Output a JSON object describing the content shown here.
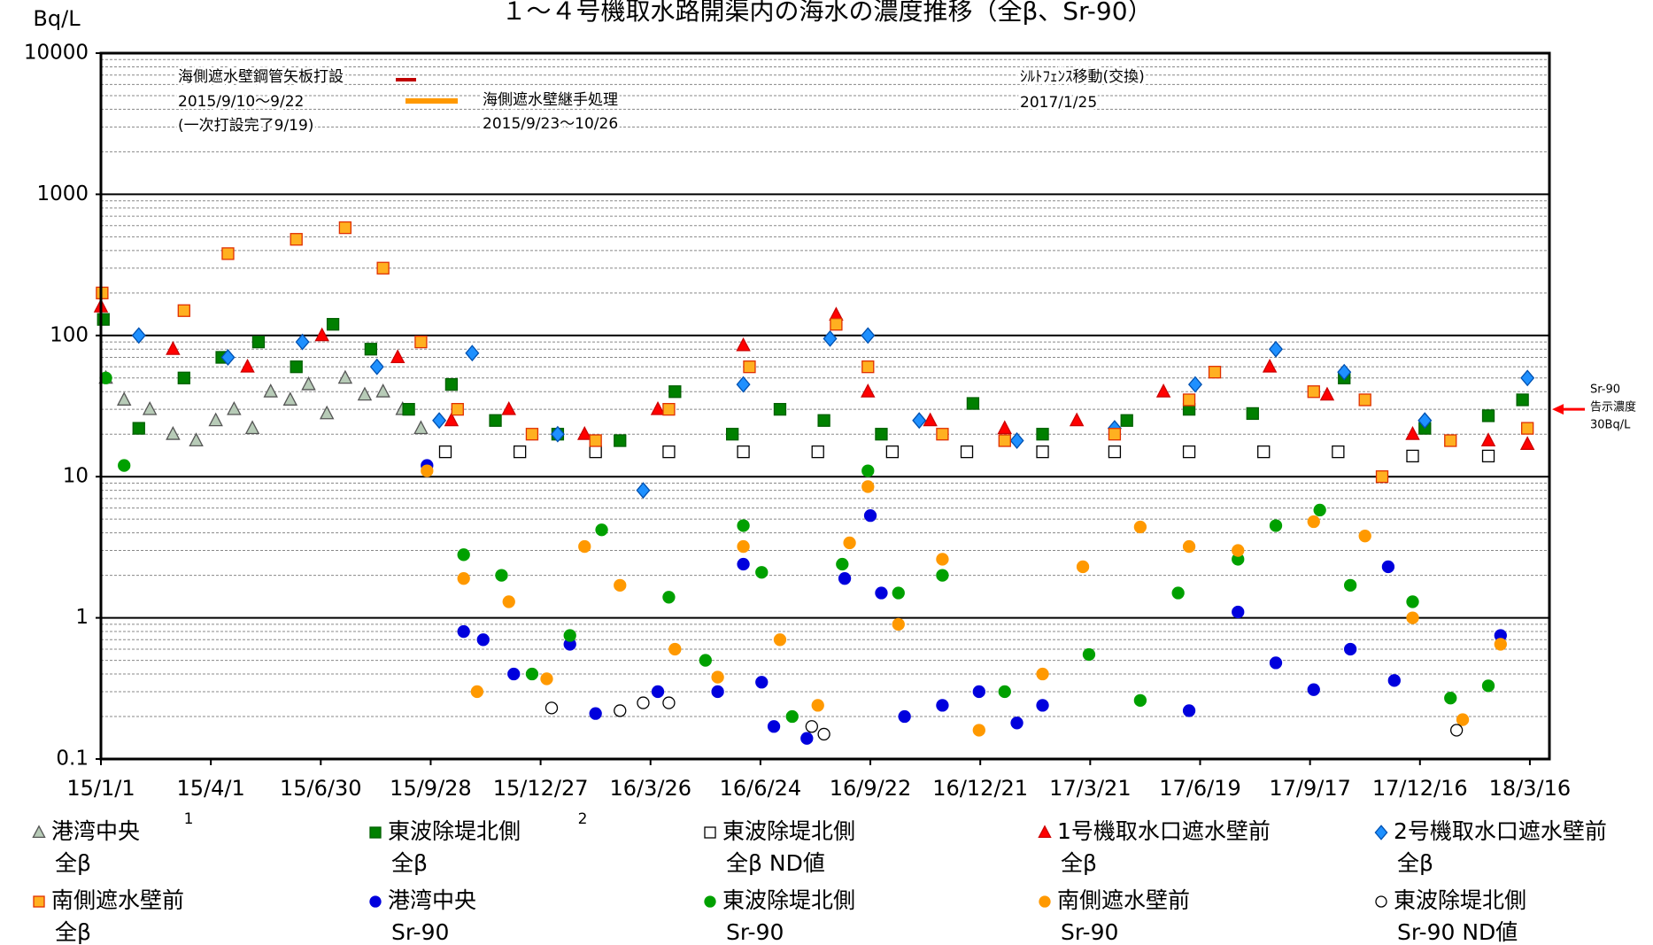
{
  "chart_data": {
    "type": "scatter",
    "title": "１～４号機取水路開渠内の海水の濃度推移（全β、Sr-90）",
    "y_label": "Bq/L",
    "log_y": true,
    "grid": true,
    "minor_grid": true,
    "xlim": [
      "15/1/1",
      "18/4/1"
    ],
    "xticks": [
      "15/1/1",
      "15/4/1",
      "15/6/30",
      "15/9/28",
      "15/12/27",
      "16/3/26",
      "16/6/24",
      "16/9/22",
      "16/12/21",
      "17/3/21",
      "17/6/19",
      "17/9/17",
      "17/12/16",
      "18/3/16"
    ],
    "ylim": [
      0.1,
      10000
    ],
    "yticks": [
      0.1,
      1,
      10,
      100,
      1000,
      10000
    ],
    "annotations": [
      {
        "text": "海側遮水壁鋼管矢板打設",
        "color": "#c00000"
      },
      {
        "text": "2015/9/10～9/22"
      },
      {
        "text": "(一次打設完了9/19)"
      },
      {
        "text": "海側遮水壁継手処理",
        "color": "#ff9900"
      },
      {
        "text": "2015/9/23～10/26"
      },
      {
        "text": "ｼﾙﾄﾌｪﾝｽ移動(交換)"
      },
      {
        "text": "2017/1/25"
      }
    ],
    "reference": {
      "value": 30,
      "label_lines": [
        "Sr-90",
        "告示濃度",
        "30Bq/L"
      ],
      "color": "#ff0000"
    },
    "footnote_marks": [
      "1",
      "2"
    ],
    "series": [
      {
        "name": "港湾中央\n全β",
        "marker": "triangle",
        "color": "#b7cbb7",
        "edge": "#555555",
        "x": [
          "15/1/5",
          "15/1/20",
          "15/2/10",
          "15/3/1",
          "15/3/20",
          "15/4/5",
          "15/4/20",
          "15/5/5",
          "15/5/20",
          "15/6/5",
          "15/6/20",
          "15/7/5",
          "15/7/20",
          "15/8/5",
          "15/8/20",
          "15/9/5",
          "15/9/20"
        ],
        "values": [
          50,
          35,
          30,
          20,
          18,
          25,
          30,
          22,
          40,
          35,
          45,
          28,
          50,
          38,
          40,
          30,
          22
        ]
      },
      {
        "name": "東波除堤北側\n全β",
        "marker": "square",
        "color": "#008000",
        "edge": "#006000",
        "x": [
          "15/1/3",
          "15/2/1",
          "15/3/10",
          "15/4/10",
          "15/5/10",
          "15/6/10",
          "15/7/10",
          "15/8/10",
          "15/9/10",
          "15/10/15",
          "15/11/20",
          "16/1/10",
          "16/3/1",
          "16/4/15",
          "16/6/1",
          "16/7/10",
          "16/8/15",
          "16/10/1",
          "16/12/15",
          "17/2/10",
          "17/4/20",
          "17/6/10",
          "17/8/1",
          "17/10/15",
          "17/12/20",
          "18/2/10",
          "18/3/10"
        ],
        "values": [
          130,
          22,
          50,
          70,
          90,
          60,
          120,
          80,
          30,
          45,
          25,
          20,
          18,
          40,
          20,
          30,
          25,
          20,
          33,
          20,
          25,
          30,
          28,
          50,
          22,
          27,
          35
        ]
      },
      {
        "name": "東波除堤北側\n全β ND値",
        "marker": "square",
        "color": "#ffffff",
        "edge": "#000000",
        "x": [
          "15/10/10",
          "15/12/10",
          "16/2/10",
          "16/4/10",
          "16/6/10",
          "16/8/10",
          "16/10/10",
          "16/12/10",
          "17/2/10",
          "17/4/10",
          "17/6/10",
          "17/8/10",
          "17/10/10",
          "17/12/10",
          "18/2/10"
        ],
        "values": [
          15,
          15,
          15,
          15,
          15,
          15,
          15,
          15,
          15,
          15,
          15,
          15,
          15,
          14,
          14
        ]
      },
      {
        "name": "1号機取水口遮水壁前\n全β",
        "marker": "triangle",
        "color": "#ff0000",
        "edge": "#cc0000",
        "x": [
          "15/1/1",
          "15/3/1",
          "15/5/1",
          "15/7/1",
          "15/9/1",
          "15/10/15",
          "15/12/1",
          "16/2/1",
          "16/4/1",
          "16/6/10",
          "16/8/25",
          "16/9/20",
          "16/11/10",
          "17/1/10",
          "17/3/10",
          "17/5/20",
          "17/8/15",
          "17/10/1",
          "17/12/10",
          "18/2/10",
          "18/3/14"
        ],
        "values": [
          160,
          80,
          60,
          100,
          70,
          25,
          30,
          20,
          30,
          85,
          140,
          40,
          25,
          22,
          25,
          40,
          60,
          38,
          20,
          18,
          17
        ]
      },
      {
        "name": "2号機取水口遮水壁前\n全β",
        "marker": "diamond",
        "color": "#1e90ff",
        "edge": "#0050b0",
        "x": [
          "15/2/1",
          "15/4/15",
          "15/6/15",
          "15/8/15",
          "15/10/5",
          "15/11/1",
          "16/1/10",
          "16/3/20",
          "16/6/10",
          "16/8/20",
          "16/9/20",
          "16/11/1",
          "17/1/20",
          "17/4/10",
          "17/6/15",
          "17/8/20",
          "17/10/15",
          "17/12/20",
          "18/3/14"
        ],
        "values": [
          100,
          70,
          90,
          60,
          25,
          75,
          20,
          8,
          45,
          95,
          100,
          25,
          18,
          22,
          45,
          80,
          55,
          25,
          50
        ]
      },
      {
        "name": "南側遮水壁前\n全β",
        "marker": "square",
        "color": "#ffb020",
        "edge": "#e03000",
        "x": [
          "15/1/2",
          "15/3/10",
          "15/4/15",
          "15/6/10",
          "15/7/20",
          "15/8/20",
          "15/9/20",
          "15/10/20",
          "15/12/20",
          "16/2/10",
          "16/4/10",
          "16/6/15",
          "16/8/25",
          "16/9/20",
          "16/11/20",
          "17/1/10",
          "17/4/10",
          "17/6/10",
          "17/7/1",
          "17/9/20",
          "17/11/1",
          "17/11/15",
          "18/1/10",
          "18/3/14"
        ],
        "values": [
          200,
          150,
          380,
          480,
          580,
          300,
          90,
          30,
          20,
          18,
          30,
          60,
          120,
          60,
          20,
          18,
          20,
          35,
          55,
          40,
          35,
          10,
          18,
          22
        ]
      },
      {
        "name": "港湾中央\nSr-90",
        "marker": "circle",
        "color": "#0000dd",
        "edge": "#0000dd",
        "x": [
          "15/9/25",
          "15/10/25",
          "15/11/10",
          "15/12/5",
          "16/1/20",
          "16/2/10",
          "16/4/1",
          "16/5/20",
          "16/6/10",
          "16/6/25",
          "16/7/5",
          "16/8/1",
          "16/9/1",
          "16/9/22",
          "16/10/1",
          "16/10/20",
          "16/11/20",
          "16/12/20",
          "17/1/20",
          "17/2/10",
          "17/6/10",
          "17/7/20",
          "17/8/20",
          "17/9/20",
          "17/10/20",
          "17/11/20",
          "17/11/25",
          "18/2/20"
        ],
        "values": [
          12,
          0.8,
          0.7,
          0.4,
          0.65,
          0.21,
          0.3,
          0.3,
          2.4,
          0.35,
          0.17,
          0.14,
          1.9,
          5.3,
          1.5,
          0.2,
          0.24,
          0.3,
          0.18,
          0.24,
          0.22,
          1.1,
          0.48,
          0.31,
          0.6,
          2.3,
          0.36,
          0.75
        ]
      },
      {
        "name": "東波除堤北側\nSr-90",
        "marker": "circle",
        "color": "#00a000",
        "edge": "#00a000",
        "x": [
          "15/1/5",
          "15/1/20",
          "15/10/25",
          "15/11/25",
          "15/12/20",
          "16/1/20",
          "16/2/15",
          "16/4/10",
          "16/5/10",
          "16/6/10",
          "16/6/25",
          "16/7/20",
          "16/8/30",
          "16/9/20",
          "16/10/15",
          "16/11/20",
          "17/1/10",
          "17/3/20",
          "17/5/1",
          "17/6/1",
          "17/7/20",
          "17/8/20",
          "17/9/25",
          "17/10/20",
          "17/12/10",
          "18/1/10",
          "18/2/10"
        ],
        "values": [
          50,
          12,
          2.8,
          2.0,
          0.4,
          0.75,
          4.2,
          1.4,
          0.5,
          4.5,
          2.1,
          0.2,
          2.4,
          11,
          1.5,
          2.0,
          0.3,
          0.55,
          0.26,
          1.5,
          2.6,
          4.5,
          5.8,
          1.7,
          1.3,
          0.27,
          0.33
        ]
      },
      {
        "name": "南側遮水壁前\nSr-90",
        "marker": "circle",
        "color": "#ff9900",
        "edge": "#ff9900",
        "x": [
          "15/9/25",
          "15/10/25",
          "15/11/5",
          "15/12/1",
          "16/1/1",
          "16/2/1",
          "16/3/1",
          "16/4/15",
          "16/5/20",
          "16/6/10",
          "16/7/10",
          "16/8/10",
          "16/9/5",
          "16/9/20",
          "16/10/15",
          "16/11/20",
          "16/12/20",
          "17/2/10",
          "17/3/15",
          "17/5/1",
          "17/6/10",
          "17/7/20",
          "17/9/20",
          "17/11/1",
          "17/12/10",
          "18/1/20",
          "18/2/20"
        ],
        "values": [
          11,
          1.9,
          0.3,
          1.3,
          0.37,
          3.2,
          1.7,
          0.6,
          0.38,
          3.2,
          0.7,
          0.24,
          3.4,
          8.5,
          0.9,
          2.6,
          0.16,
          0.4,
          2.3,
          4.4,
          3.2,
          3.0,
          4.8,
          3.8,
          1.0,
          0.19,
          0.65
        ]
      },
      {
        "name": "東波除堤北側\nSr-90 ND値",
        "marker": "circle",
        "color": "#ffffff",
        "edge": "#000000",
        "x": [
          "16/1/5",
          "16/3/1",
          "16/3/20",
          "16/4/10",
          "16/8/5",
          "16/8/15",
          "18/1/15"
        ],
        "values": [
          0.23,
          0.22,
          0.25,
          0.25,
          0.17,
          0.15,
          0.16
        ]
      }
    ]
  }
}
